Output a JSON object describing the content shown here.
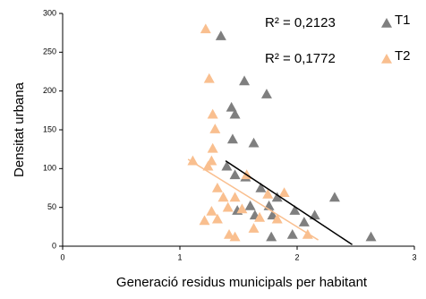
{
  "chart_data": {
    "type": "scatter",
    "x_label": "Generació residus municipals per habitant",
    "y_label": "Densitat urbana",
    "xlim": [
      0,
      3
    ],
    "xticks": [
      0,
      1,
      2,
      3
    ],
    "ylim": [
      0,
      300
    ],
    "yticks": [
      0,
      50,
      100,
      150,
      200,
      250,
      300
    ],
    "annotations": [
      "R² = 0,2123",
      "R² = 0,1772"
    ],
    "series": [
      {
        "name": "T1",
        "color": "#7f7f7f",
        "x": [
          1.35,
          1.44,
          1.47,
          1.55,
          1.74,
          1.45,
          1.63,
          1.4,
          1.47,
          1.56,
          1.69,
          1.76,
          1.83,
          1.64,
          1.79,
          1.98,
          2.06,
          2.15,
          1.78,
          1.96,
          2.32,
          2.63,
          1.6,
          1.49
        ],
        "values": [
          271,
          179,
          170,
          213,
          196,
          138,
          133,
          103,
          92,
          89,
          75,
          52,
          63,
          40,
          40,
          46,
          31,
          40,
          12,
          15,
          63,
          12,
          52,
          46
        ],
        "trend": {
          "x": [
            1.39,
            2.47
          ],
          "values": [
            110,
            2
          ],
          "color": "#000000"
        }
      },
      {
        "name": "T2",
        "color": "#f9bf8f",
        "x": [
          1.22,
          1.25,
          1.28,
          1.3,
          1.28,
          1.27,
          1.11,
          1.24,
          1.32,
          1.37,
          1.41,
          1.47,
          1.53,
          1.57,
          1.63,
          1.89,
          2.09,
          1.27,
          1.32,
          1.21,
          1.42,
          1.47,
          1.68,
          1.75,
          1.83
        ],
        "values": [
          280,
          216,
          170,
          151,
          126,
          110,
          110,
          103,
          75,
          63,
          50,
          63,
          48,
          92,
          23,
          69,
          15,
          45,
          35,
          33,
          15,
          12,
          37,
          67,
          35
        ],
        "trend": {
          "x": [
            1.07,
            2.18
          ],
          "values": [
            112,
            8
          ],
          "color": "#f9bf8f"
        }
      }
    ]
  }
}
